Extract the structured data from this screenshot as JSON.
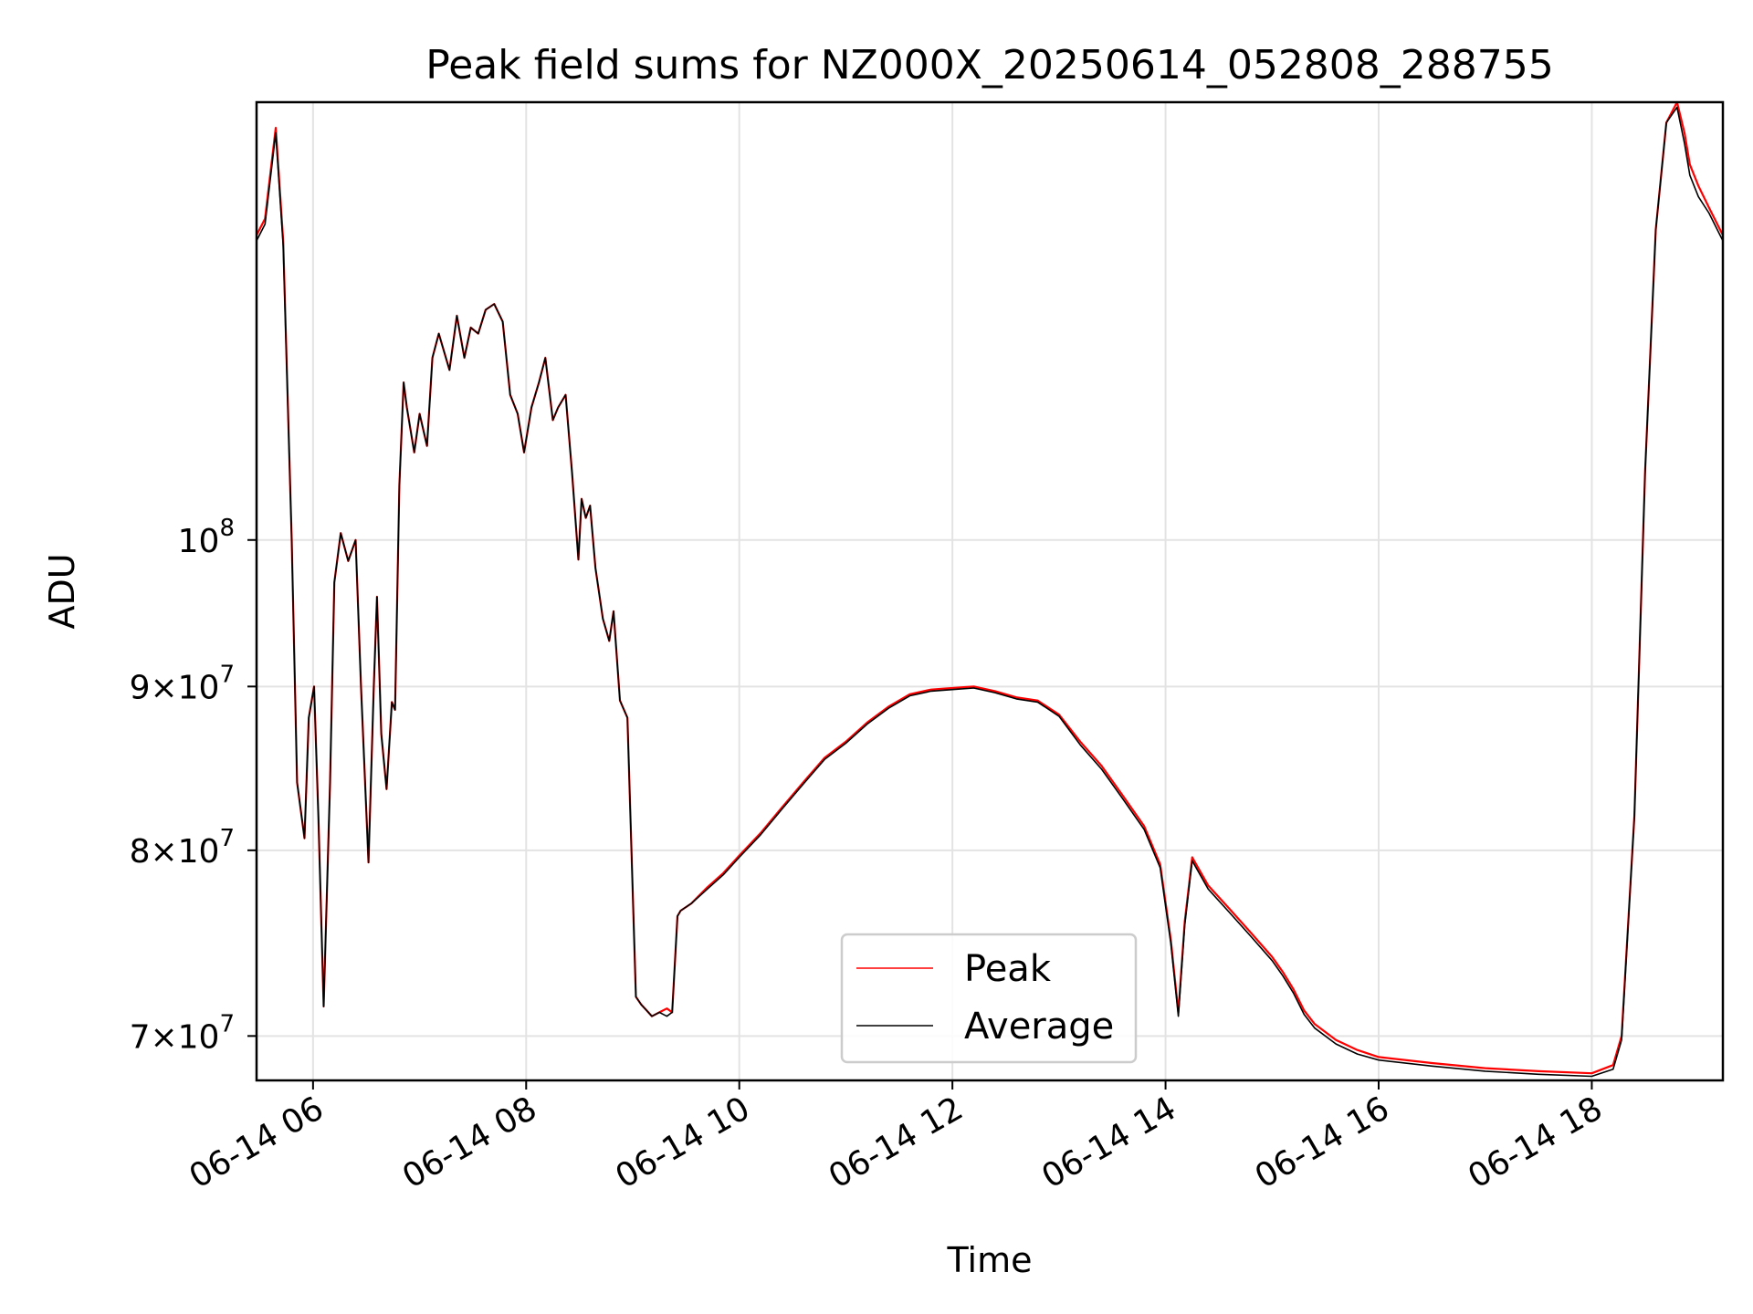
{
  "chart_data": {
    "type": "line",
    "title": "Peak field sums for NZ000X_20250614_052808_288755",
    "xlabel": "Time",
    "ylabel": "ADU",
    "y_scale": "log",
    "x_unit": "hours since 2025-06-14 00:00",
    "xlim": [
      5.47,
      19.23
    ],
    "ylim": [
      67800000,
      137000000
    ],
    "grid": true,
    "legend_position": "lower-center",
    "x_ticks": [
      {
        "value": 6,
        "label": "06-14 06"
      },
      {
        "value": 8,
        "label": "06-14 08"
      },
      {
        "value": 10,
        "label": "06-14 10"
      },
      {
        "value": 12,
        "label": "06-14 12"
      },
      {
        "value": 14,
        "label": "06-14 14"
      },
      {
        "value": 16,
        "label": "06-14 16"
      },
      {
        "value": 18,
        "label": "06-14 18"
      }
    ],
    "y_ticks": [
      {
        "value": 70000000,
        "mantissa": "7",
        "exponent": "7"
      },
      {
        "value": 80000000,
        "mantissa": "8",
        "exponent": "7"
      },
      {
        "value": 90000000,
        "mantissa": "9",
        "exponent": "7"
      },
      {
        "value": 100000000,
        "mantissa": "",
        "exponent": "8"
      }
    ],
    "series": [
      {
        "name": "Peak",
        "color": "#ff0000",
        "x": [
          5.47,
          5.55,
          5.65,
          5.72,
          5.8,
          5.85,
          5.92,
          5.96,
          6.01,
          6.05,
          6.1,
          6.16,
          6.2,
          6.26,
          6.33,
          6.4,
          6.45,
          6.52,
          6.57,
          6.6,
          6.64,
          6.69,
          6.74,
          6.77,
          6.81,
          6.85,
          6.88,
          6.95,
          7.0,
          7.07,
          7.12,
          7.18,
          7.28,
          7.35,
          7.42,
          7.48,
          7.55,
          7.62,
          7.7,
          7.78,
          7.85,
          7.92,
          7.98,
          8.05,
          8.12,
          8.18,
          8.25,
          8.3,
          8.37,
          8.43,
          8.49,
          8.52,
          8.56,
          8.6,
          8.65,
          8.72,
          8.78,
          8.82,
          8.88,
          8.95,
          9.03,
          9.08,
          9.13,
          9.18,
          9.25,
          9.32,
          9.37,
          9.42,
          9.45,
          9.55,
          9.7,
          9.85,
          10.0,
          10.2,
          10.4,
          10.6,
          10.8,
          11.0,
          11.2,
          11.4,
          11.6,
          11.8,
          12.0,
          12.2,
          12.4,
          12.6,
          12.8,
          13.0,
          13.2,
          13.4,
          13.6,
          13.8,
          13.95,
          14.05,
          14.12,
          14.18,
          14.25,
          14.4,
          14.6,
          14.8,
          15.0,
          15.1,
          15.2,
          15.3,
          15.4,
          15.6,
          15.8,
          16.0,
          16.5,
          17.0,
          17.5,
          18.0,
          18.2,
          18.28,
          18.4,
          18.5,
          18.6,
          18.7,
          18.8,
          18.87,
          18.92,
          19.0,
          19.1,
          19.23
        ],
        "y": [
          124500000,
          126000000,
          134500000,
          124000000,
          100000000,
          84000000,
          80700000,
          88000000,
          90000000,
          82000000,
          71500000,
          84000000,
          97000000,
          100500000,
          98500000,
          100000000,
          90000000,
          79300000,
          90000000,
          96000000,
          87000000,
          83600000,
          89000000,
          88500000,
          104000000,
          112000000,
          110000000,
          106500000,
          109500000,
          107000000,
          114000000,
          116000000,
          113000000,
          117500000,
          114000000,
          116500000,
          116000000,
          118000000,
          118500000,
          117000000,
          111000000,
          109500000,
          106500000,
          110000000,
          112000000,
          114000000,
          109000000,
          110000000,
          111000000,
          105000000,
          98600000,
          103000000,
          101600000,
          102500000,
          98000000,
          94500000,
          93000000,
          95000000,
          89100000,
          88000000,
          72000000,
          71600000,
          71300000,
          71000000,
          71200000,
          71400000,
          71200000,
          76300000,
          76600000,
          77000000,
          77900000,
          78700000,
          79700000,
          81000000,
          82500000,
          84000000,
          85500000,
          86500000,
          87700000,
          88700000,
          89500000,
          89800000,
          89900000,
          90000000,
          89700000,
          89300000,
          89100000,
          88200000,
          86500000,
          85000000,
          83200000,
          81400000,
          79200000,
          75000000,
          71200000,
          76000000,
          79600000,
          78000000,
          76700000,
          75400000,
          74100000,
          73300000,
          72400000,
          71300000,
          70600000,
          69800000,
          69300000,
          68950000,
          68650000,
          68400000,
          68250000,
          68150000,
          68550000,
          70000000,
          82000000,
          105000000,
          125000000,
          135000000,
          137000000,
          134000000,
          131000000,
          129000000,
          127000000,
          124500000
        ]
      },
      {
        "name": "Average",
        "color": "#000000",
        "x": [
          5.47,
          5.55,
          5.65,
          5.72,
          5.8,
          5.85,
          5.92,
          5.96,
          6.01,
          6.05,
          6.1,
          6.16,
          6.2,
          6.26,
          6.33,
          6.4,
          6.45,
          6.52,
          6.57,
          6.6,
          6.64,
          6.69,
          6.74,
          6.77,
          6.81,
          6.85,
          6.88,
          6.95,
          7.0,
          7.07,
          7.12,
          7.18,
          7.28,
          7.35,
          7.42,
          7.48,
          7.55,
          7.62,
          7.7,
          7.78,
          7.85,
          7.92,
          7.98,
          8.05,
          8.12,
          8.18,
          8.25,
          8.3,
          8.37,
          8.43,
          8.49,
          8.52,
          8.56,
          8.6,
          8.65,
          8.72,
          8.78,
          8.82,
          8.88,
          8.95,
          9.03,
          9.08,
          9.13,
          9.18,
          9.25,
          9.32,
          9.37,
          9.42,
          9.45,
          9.55,
          9.7,
          9.85,
          10.0,
          10.2,
          10.4,
          10.6,
          10.8,
          11.0,
          11.2,
          11.4,
          11.6,
          11.8,
          12.0,
          12.2,
          12.4,
          12.6,
          12.8,
          13.0,
          13.2,
          13.4,
          13.6,
          13.8,
          13.95,
          14.05,
          14.12,
          14.18,
          14.25,
          14.4,
          14.6,
          14.8,
          15.0,
          15.1,
          15.2,
          15.3,
          15.4,
          15.6,
          15.8,
          16.0,
          16.5,
          17.0,
          17.5,
          18.0,
          18.2,
          18.28,
          18.4,
          18.5,
          18.6,
          18.7,
          18.8,
          18.87,
          18.92,
          19.0,
          19.1,
          19.23
        ],
        "y": [
          124000000,
          125500000,
          134000000,
          123500000,
          100000000,
          84000000,
          80700000,
          88000000,
          90000000,
          82000000,
          71500000,
          84000000,
          97000000,
          100500000,
          98500000,
          100000000,
          90000000,
          79300000,
          90000000,
          96000000,
          87000000,
          83600000,
          89000000,
          88500000,
          104000000,
          112000000,
          110000000,
          106500000,
          109500000,
          107000000,
          114000000,
          116000000,
          113000000,
          117500000,
          114000000,
          116500000,
          116000000,
          118000000,
          118500000,
          117000000,
          111000000,
          109500000,
          106500000,
          110000000,
          112000000,
          114000000,
          109000000,
          110000000,
          111000000,
          105000000,
          98600000,
          103000000,
          101600000,
          102500000,
          98000000,
          94500000,
          93000000,
          95000000,
          89100000,
          88000000,
          72000000,
          71600000,
          71300000,
          71000000,
          71200000,
          71000000,
          71200000,
          76300000,
          76600000,
          77000000,
          77800000,
          78600000,
          79600000,
          80900000,
          82400000,
          83900000,
          85400000,
          86400000,
          87600000,
          88600000,
          89400000,
          89700000,
          89800000,
          89900000,
          89600000,
          89200000,
          89000000,
          88100000,
          86300000,
          84800000,
          83000000,
          81200000,
          79000000,
          74800000,
          71000000,
          75800000,
          79400000,
          77800000,
          76500000,
          75200000,
          73900000,
          73100000,
          72200000,
          71100000,
          70400000,
          69600000,
          69100000,
          68800000,
          68500000,
          68250000,
          68100000,
          68000000,
          68350000,
          69800000,
          82000000,
          105000000,
          125000000,
          135000000,
          136500000,
          133000000,
          130000000,
          128000000,
          126500000,
          124000000
        ]
      }
    ]
  }
}
